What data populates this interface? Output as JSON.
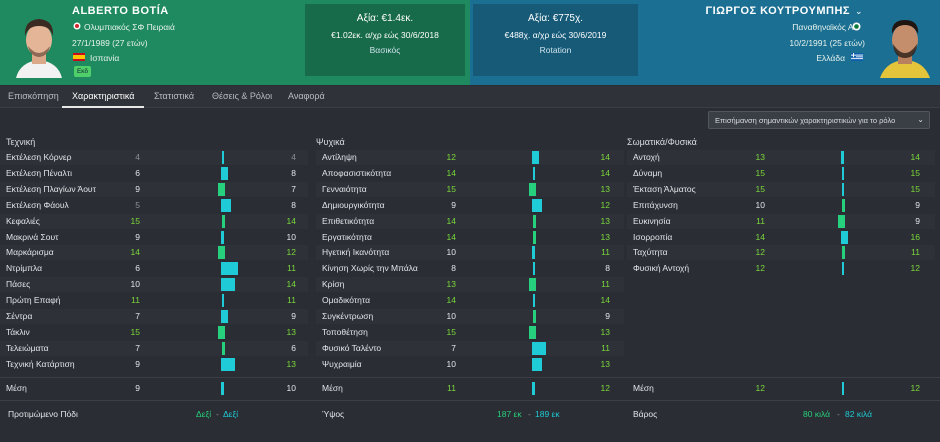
{
  "left_player": {
    "name": "ALBERTO BOTÍA",
    "club": "Ολυμπιακός ΣΦ Πειραιά",
    "dob": "27/1/1989 (27 ετών)",
    "nation": "Ισπανία",
    "badge": "Εκδ"
  },
  "right_player": {
    "name": "ΓΙΩΡΓΟΣ ΚΟΥΤΡΟΥΜΠΗΣ",
    "club": "Παναθηναϊκός ΑΟ",
    "dob": "10/2/1991 (25 ετών)",
    "nation": "Ελλάδα"
  },
  "left_value": {
    "title": "Αξία: €1.4εκ.",
    "wage": "€1.02εκ. α/χρ εώς 30/6/2018",
    "role": "Βασικός"
  },
  "right_value": {
    "title": "Αξία: €775χ.",
    "wage": "€488χ. α/χρ εώς 30/6/2019",
    "role": "Rotation"
  },
  "tabs": [
    "Επισκόπηση",
    "Χαρακτηριστικά",
    "Στατιστικά",
    "Θέσεις & Ρόλοι",
    "Αναφορά"
  ],
  "dropdown_label": "Επισήμανση σημαντικών χαρακτηριστικών για το ρόλο",
  "sections": {
    "technical": {
      "title": "Τεχνική",
      "rows": [
        {
          "name": "Εκτέλεση Κόρνερ",
          "a": 4,
          "b": 4
        },
        {
          "name": "Εκτέλεση Πέναλτι",
          "a": 6,
          "b": 8
        },
        {
          "name": "Εκτέλεση Πλαγίων Άουτ",
          "a": 9,
          "b": 7
        },
        {
          "name": "Εκτέλεση Φάουλ",
          "a": 5,
          "b": 8
        },
        {
          "name": "Κεφαλιές",
          "a": 15,
          "b": 14
        },
        {
          "name": "Μακρινά Σουτ",
          "a": 9,
          "b": 10
        },
        {
          "name": "Μαρκάρισμα",
          "a": 14,
          "b": 12
        },
        {
          "name": "Ντρίμπλα",
          "a": 6,
          "b": 11
        },
        {
          "name": "Πάσες",
          "a": 10,
          "b": 14
        },
        {
          "name": "Πρώτη Επαφή",
          "a": 11,
          "b": 11
        },
        {
          "name": "Σέντρα",
          "a": 7,
          "b": 9
        },
        {
          "name": "Τάκλιν",
          "a": 15,
          "b": 13
        },
        {
          "name": "Τελειώματα",
          "a": 7,
          "b": 6
        },
        {
          "name": "Τεχνική Κατάρτιση",
          "a": 9,
          "b": 13
        }
      ],
      "avg": {
        "name": "Μέση",
        "a": 9,
        "b": 10
      }
    },
    "mental": {
      "title": "Ψυχικά",
      "rows": [
        {
          "name": "Αντίληψη",
          "a": 12,
          "b": 14
        },
        {
          "name": "Αποφασιστικότητα",
          "a": 14,
          "b": 14
        },
        {
          "name": "Γενναιότητα",
          "a": 15,
          "b": 13
        },
        {
          "name": "Δημιουργικότητα",
          "a": 9,
          "b": 12
        },
        {
          "name": "Επιθετικότητα",
          "a": 14,
          "b": 13
        },
        {
          "name": "Εργατικότητα",
          "a": 14,
          "b": 13
        },
        {
          "name": "Ηγετική Ικανότητα",
          "a": 10,
          "b": 11
        },
        {
          "name": "Κίνηση Χωρίς την Μπάλα",
          "a": 8,
          "b": 8
        },
        {
          "name": "Κρίση",
          "a": 13,
          "b": 11
        },
        {
          "name": "Ομαδικότητα",
          "a": 14,
          "b": 14
        },
        {
          "name": "Συγκέντρωση",
          "a": 10,
          "b": 9
        },
        {
          "name": "Τοποθέτηση",
          "a": 15,
          "b": 13
        },
        {
          "name": "Φυσικό Ταλέντο",
          "a": 7,
          "b": 11
        },
        {
          "name": "Ψυχραιμία",
          "a": 10,
          "b": 13
        }
      ],
      "avg": {
        "name": "Μέση",
        "a": 11,
        "b": 12
      }
    },
    "physical": {
      "title": "Σωματικά/Φυσικά",
      "rows": [
        {
          "name": "Αντοχή",
          "a": 13,
          "b": 14
        },
        {
          "name": "Δύναμη",
          "a": 15,
          "b": 15
        },
        {
          "name": "Έκταση Άλματος",
          "a": 15,
          "b": 15
        },
        {
          "name": "Επιτάχυνση",
          "a": 10,
          "b": 9
        },
        {
          "name": "Ευκινησία",
          "a": 11,
          "b": 9
        },
        {
          "name": "Ισορροπία",
          "a": 14,
          "b": 16
        },
        {
          "name": "Ταχύτητα",
          "a": 12,
          "b": 11
        },
        {
          "name": "Φυσική Αντοχή",
          "a": 12,
          "b": 12
        }
      ],
      "avg": {
        "name": "Μέση",
        "a": 12,
        "b": 12
      }
    }
  },
  "footer": {
    "foot_label": "Προτιμώμενο Πόδι",
    "foot_a": "Δεξί",
    "foot_b": "Δεξί",
    "height_label": "Ύψος",
    "height_a": "187 εκ",
    "height_b": "189 εκ",
    "weight_label": "Βάρος",
    "weight_a": "80 κιλά",
    "weight_b": "82 κιλά",
    "dash": "-"
  },
  "colors": {
    "left_header": "#1f8a5f",
    "right_header": "#1b6f93",
    "bar_cyan": "#1ecbd6",
    "bar_green": "#26d07c"
  }
}
